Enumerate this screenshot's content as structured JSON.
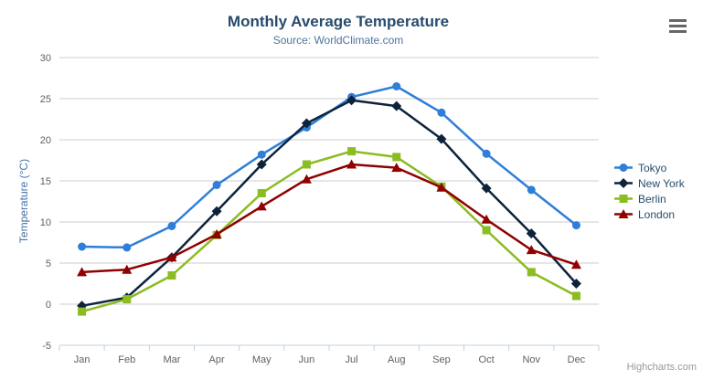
{
  "chart": {
    "credits": "Highcharts.com",
    "menu_icon": "hamburger-icon"
  },
  "chart_data": {
    "type": "line",
    "title": "Monthly Average Temperature",
    "subtitle": "Source: WorldClimate.com",
    "xlabel": "",
    "ylabel": "Temperature (°C)",
    "categories": [
      "Jan",
      "Feb",
      "Mar",
      "Apr",
      "May",
      "Jun",
      "Jul",
      "Aug",
      "Sep",
      "Oct",
      "Nov",
      "Dec"
    ],
    "series": [
      {
        "name": "Tokyo",
        "color": "#2f7ed8",
        "marker": "circle",
        "values": [
          7.0,
          6.9,
          9.5,
          14.5,
          18.2,
          21.5,
          25.2,
          26.5,
          23.3,
          18.3,
          13.9,
          9.6
        ]
      },
      {
        "name": "New York",
        "color": "#0d233a",
        "marker": "diamond",
        "values": [
          -0.2,
          0.8,
          5.7,
          11.3,
          17.0,
          22.0,
          24.8,
          24.1,
          20.1,
          14.1,
          8.6,
          2.5
        ]
      },
      {
        "name": "Berlin",
        "color": "#8bbc21",
        "marker": "square",
        "values": [
          -0.9,
          0.6,
          3.5,
          8.4,
          13.5,
          17.0,
          18.6,
          17.9,
          14.3,
          9.0,
          3.9,
          1.0
        ]
      },
      {
        "name": "London",
        "color": "#910000",
        "marker": "triangle",
        "values": [
          3.9,
          4.2,
          5.7,
          8.5,
          11.9,
          15.2,
          17.0,
          16.6,
          14.2,
          10.3,
          6.6,
          4.8
        ]
      }
    ],
    "ylim": [
      -5,
      30
    ],
    "ytick_interval": 5,
    "grid": true,
    "legend_position": "right",
    "colors": {
      "title_text": "#274b6d",
      "subtitle_text": "#4d759e",
      "axis_label_text": "#606060",
      "y_axis_title_text": "#4572a7",
      "gridline": "#cccccc",
      "axis_line": "#c0d0e0",
      "legend_text": "#274b6d",
      "credits_text": "#999999"
    }
  }
}
